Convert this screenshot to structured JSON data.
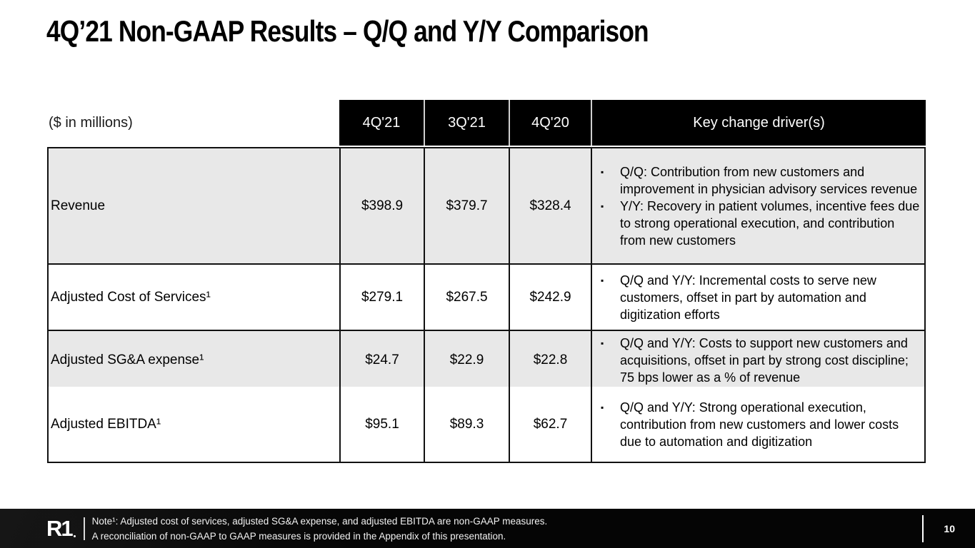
{
  "slide": {
    "title": "4Q’21 Non-GAAP Results – Q/Q and Y/Y Comparison"
  },
  "table": {
    "unit_label": "($ in millions)",
    "columns": [
      "4Q'21",
      "3Q'21",
      "4Q'20"
    ],
    "drivers_header": "Key change driver(s)",
    "rows": [
      {
        "label": "Revenue",
        "values": [
          "$398.9",
          "$379.7",
          "$328.4"
        ],
        "drivers": [
          "Q/Q: Contribution from new customers and improvement in physician advisory services revenue",
          "Y/Y: Recovery in patient volumes, incentive fees due to strong operational execution, and contribution from new customers"
        ]
      },
      {
        "label": "Adjusted Cost of Services¹",
        "values": [
          "$279.1",
          "$267.5",
          "$242.9"
        ],
        "drivers": [
          "Q/Q and Y/Y: Incremental costs to serve new customers, offset in part by automation and digitization efforts"
        ]
      },
      {
        "label": "Adjusted SG&A expense¹",
        "values": [
          "$24.7",
          "$22.9",
          "$22.8"
        ],
        "drivers": [
          "Q/Q and Y/Y: Costs to support new customers and acquisitions, offset in part by strong cost discipline; 75 bps lower as a % of revenue"
        ]
      },
      {
        "label": "Adjusted EBITDA¹",
        "values": [
          "$95.1",
          "$89.3",
          "$62.7"
        ],
        "drivers": [
          "Q/Q and Y/Y: Strong operational execution, contribution from new customers and lower costs due to automation and digitization"
        ]
      }
    ]
  },
  "footer": {
    "logo_text": "R1",
    "note_line1": "Note¹: Adjusted cost of services, adjusted SG&A expense, and adjusted EBITDA are non-GAAP measures.",
    "note_line2": "A reconciliation of non-GAAP to GAAP measures is provided in the Appendix of this presentation.",
    "page_number": "10"
  },
  "colors": {
    "header_bg": "#000000",
    "header_text": "#ffffff",
    "shaded_row_bg": "#e8e8e8",
    "border": "#111111",
    "footer_bg": "#050505"
  }
}
